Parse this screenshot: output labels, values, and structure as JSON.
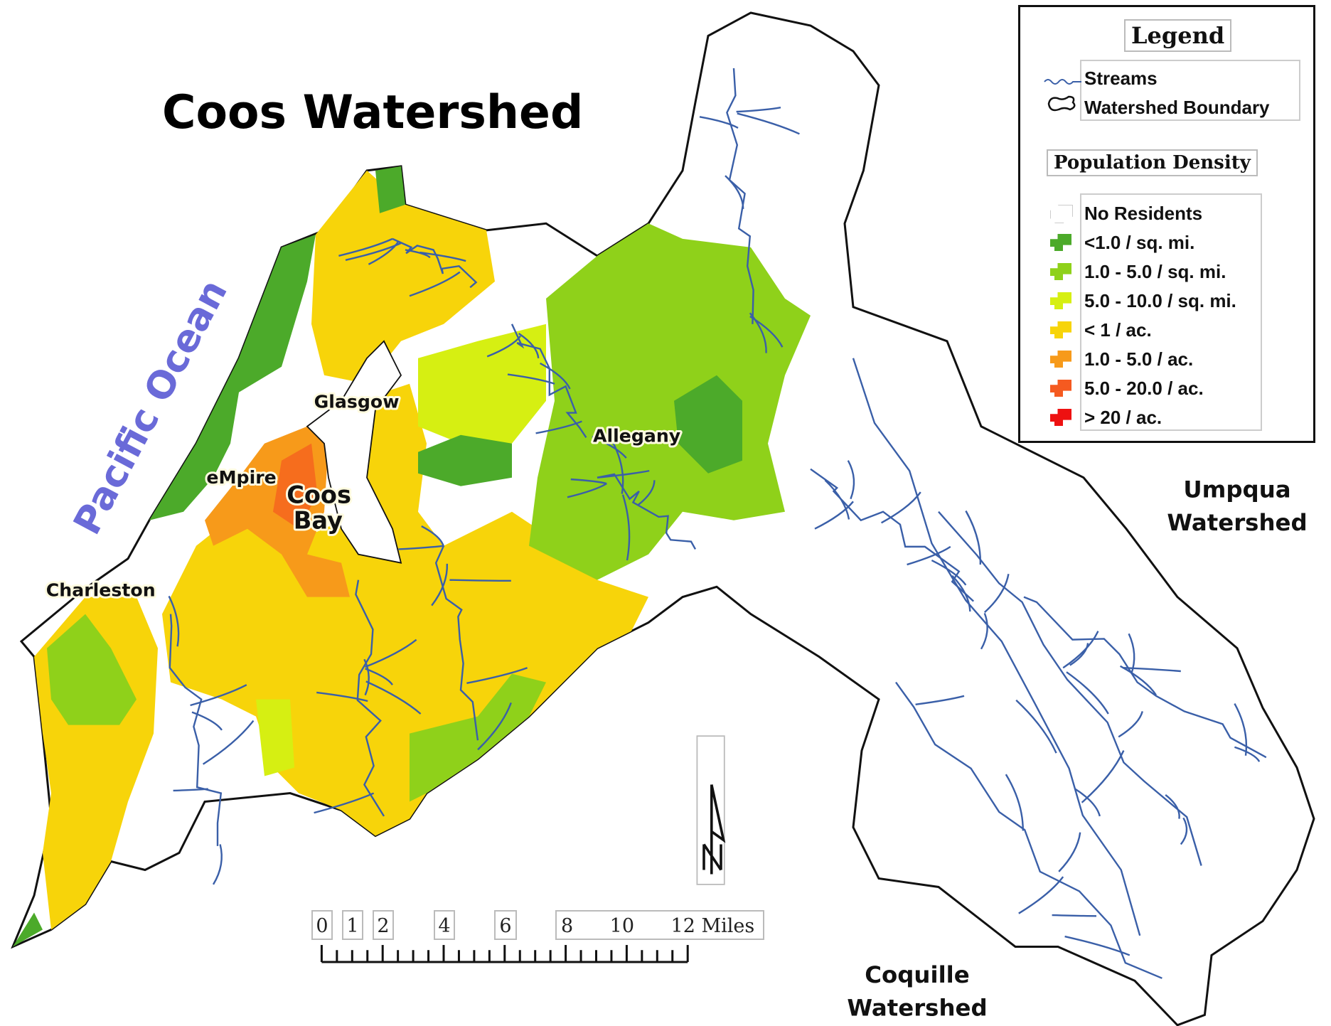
{
  "title": "Coos Watershed",
  "ocean_label": "Pacific Ocean",
  "places": [
    {
      "name": "Glasgow"
    },
    {
      "name": "Allegany"
    },
    {
      "name": "eMpire"
    },
    {
      "name": "Coos"
    },
    {
      "name": "Bay"
    },
    {
      "name": "Charleston"
    }
  ],
  "neighbors": {
    "umpqua_1": "Umpqua",
    "umpqua_2": "Watershed",
    "coquille_1": "Coquille",
    "coquille_2": "Watershed"
  },
  "legend": {
    "title": "Legend",
    "streams": "Streams",
    "boundary": "Watershed Boundary",
    "density_title": "Population Density",
    "items": [
      {
        "label": "No Residents",
        "color": "#ffffff"
      },
      {
        "label": "<1.0 / sq. mi.",
        "color": "#4caa2a"
      },
      {
        "label": "1.0 - 5.0 / sq. mi.",
        "color": "#8fd11a"
      },
      {
        "label": "5.0 - 10.0 / sq. mi.",
        "color": "#d6ef12"
      },
      {
        "label": "< 1 / ac.",
        "color": "#f7d40a"
      },
      {
        "label": "1.0 - 5.0 / ac.",
        "color": "#f79a1a"
      },
      {
        "label": "5.0 - 20.0 / ac.",
        "color": "#f55a20"
      },
      {
        "label": "> 20 / ac.",
        "color": "#ee1111"
      }
    ]
  },
  "colors": {
    "stream": "#3a5fa8",
    "ocean_label": "#6a6ad8",
    "boundary": "#111111"
  },
  "scale": {
    "labels": [
      "0",
      "1",
      "2",
      "4",
      "6"
    ],
    "long_label": "8      10      12 Miles",
    "unit": "Miles"
  },
  "north_arrow": "N"
}
